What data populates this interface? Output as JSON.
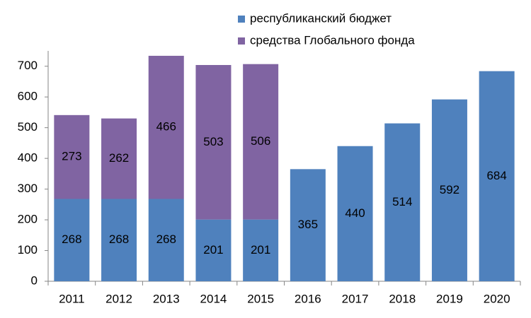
{
  "chart_data": {
    "type": "stacked-bar",
    "categories": [
      "2011",
      "2012",
      "2013",
      "2014",
      "2015",
      "2016",
      "2017",
      "2018",
      "2019",
      "2020"
    ],
    "series": [
      {
        "name": "республиканский бюджет",
        "color": "#4f81bd",
        "values": [
          268,
          268,
          268,
          201,
          201,
          365,
          440,
          514,
          592,
          684
        ]
      },
      {
        "name": "средства Глобального фонда",
        "color": "#8064a2",
        "values": [
          273,
          262,
          466,
          503,
          506,
          null,
          null,
          null,
          null,
          null
        ]
      }
    ],
    "ylim": [
      0,
      750
    ],
    "yticks": [
      0,
      100,
      200,
      300,
      400,
      500,
      600,
      700
    ],
    "grid": false,
    "legend": "top"
  }
}
